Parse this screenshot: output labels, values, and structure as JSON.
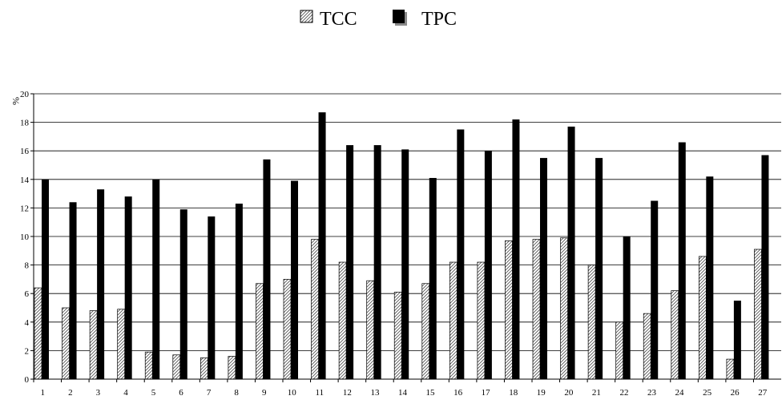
{
  "chart_data": {
    "type": "bar",
    "ylabel": "%",
    "ylim": [
      0,
      20
    ],
    "yticks": [
      0,
      2,
      4,
      6,
      8,
      10,
      12,
      14,
      16,
      18,
      20
    ],
    "grid": true,
    "legend_position": "top-center",
    "categories": [
      "1",
      "2",
      "3",
      "4",
      "5",
      "6",
      "7",
      "8",
      "9",
      "10",
      "11",
      "12",
      "13",
      "14",
      "15",
      "16",
      "17",
      "18",
      "19",
      "20",
      "21",
      "22",
      "23",
      "24",
      "25",
      "26",
      "27"
    ],
    "series": [
      {
        "name": "TCC",
        "pattern": "hatched",
        "color": "#ffffff",
        "values": [
          6.4,
          5.0,
          4.8,
          4.9,
          1.9,
          1.7,
          1.5,
          1.6,
          6.7,
          7.0,
          9.8,
          8.2,
          6.9,
          6.1,
          6.7,
          8.2,
          8.2,
          9.7,
          9.8,
          9.9,
          8.0,
          4.0,
          4.6,
          6.2,
          8.6,
          1.4,
          9.1
        ]
      },
      {
        "name": "TPC",
        "color": "#000000",
        "values": [
          14.0,
          12.4,
          13.3,
          12.8,
          14.0,
          11.9,
          11.4,
          12.3,
          15.4,
          13.9,
          18.7,
          16.4,
          16.4,
          16.1,
          14.1,
          17.5,
          16.0,
          18.2,
          15.5,
          17.7,
          15.5,
          10.0,
          12.5,
          16.6,
          14.2,
          5.5,
          15.7
        ]
      }
    ]
  }
}
